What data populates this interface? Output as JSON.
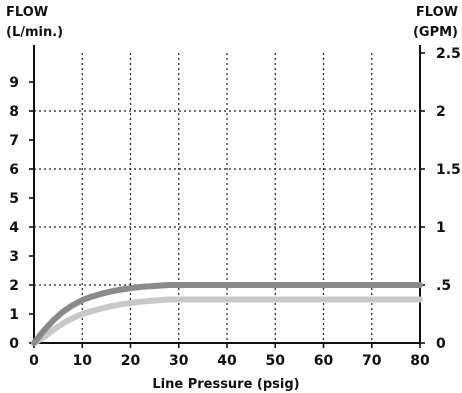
{
  "chart_data": {
    "type": "line",
    "left_axis": {
      "label_line1": "FLOW",
      "label_line2": "(L/min.)",
      "range": [
        0,
        10
      ],
      "ticks": [
        {
          "value": 0,
          "label": "0"
        },
        {
          "value": 1,
          "label": "1"
        },
        {
          "value": 2,
          "label": "2"
        },
        {
          "value": 3,
          "label": "3"
        },
        {
          "value": 4,
          "label": "4"
        },
        {
          "value": 5,
          "label": "5"
        },
        {
          "value": 6,
          "label": "6"
        },
        {
          "value": 7,
          "label": "7"
        },
        {
          "value": 8,
          "label": "8"
        },
        {
          "value": 9,
          "label": "9"
        }
      ]
    },
    "right_axis": {
      "label_line1": "FLOW",
      "label_line2": "(GPM)",
      "range": [
        0,
        2.5
      ],
      "ticks": [
        {
          "value": 0,
          "label": "0"
        },
        {
          "value": 0.5,
          "label": ".5"
        },
        {
          "value": 1,
          "label": "1"
        },
        {
          "value": 1.5,
          "label": "1.5"
        },
        {
          "value": 2,
          "label": "2"
        },
        {
          "value": 2.5,
          "label": "2.5"
        }
      ]
    },
    "x_axis": {
      "label": "Line Pressure (psig)",
      "range": [
        0,
        80
      ],
      "ticks": [
        {
          "value": 0,
          "label": "0"
        },
        {
          "value": 10,
          "label": "10"
        },
        {
          "value": 20,
          "label": "20"
        },
        {
          "value": 30,
          "label": "30"
        },
        {
          "value": 40,
          "label": "40"
        },
        {
          "value": 50,
          "label": "50"
        },
        {
          "value": 60,
          "label": "60"
        },
        {
          "value": 70,
          "label": "70"
        },
        {
          "value": 80,
          "label": "80"
        }
      ]
    },
    "grid": true,
    "grid_style": "dotted",
    "series": [
      {
        "color": "#8a8a8a",
        "x": [
          0,
          2,
          4,
          6,
          8,
          10,
          12,
          14,
          16,
          18,
          20,
          22,
          24,
          26,
          28,
          30,
          35,
          40,
          50,
          60,
          70,
          80
        ],
        "y": [
          0,
          0.42,
          0.78,
          1.08,
          1.3,
          1.48,
          1.6,
          1.7,
          1.78,
          1.84,
          1.89,
          1.93,
          1.96,
          1.98,
          2.0,
          2.0,
          2.0,
          2.0,
          2.0,
          2.0,
          2.0,
          2.0
        ]
      },
      {
        "color": "#c8c8c8",
        "x": [
          0,
          2,
          4,
          6,
          8,
          10,
          12,
          14,
          16,
          18,
          20,
          22,
          24,
          26,
          28,
          30,
          35,
          40,
          50,
          60,
          70,
          80
        ],
        "y": [
          0,
          0.2,
          0.45,
          0.68,
          0.86,
          1.0,
          1.1,
          1.19,
          1.27,
          1.33,
          1.38,
          1.42,
          1.45,
          1.48,
          1.5,
          1.5,
          1.5,
          1.5,
          1.5,
          1.5,
          1.5,
          1.5
        ]
      }
    ]
  }
}
